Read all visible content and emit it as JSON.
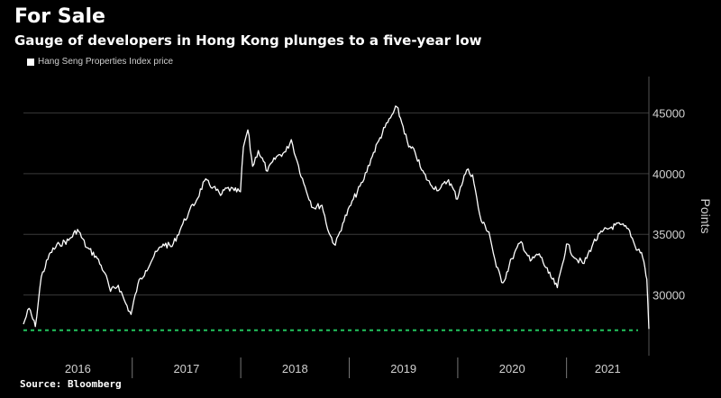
{
  "header": {
    "title": "For Sale",
    "subtitle": "Gauge of developers in Hong Kong plunges to a five-year low"
  },
  "footer": {
    "source": "Source: Bloomberg"
  },
  "colors": {
    "background": "#000000",
    "line": "#ffffff",
    "grid": "#3a3a3a",
    "reference": "#22c55e"
  },
  "chart_data": {
    "type": "line",
    "title": "For Sale",
    "subtitle": "Gauge of developers in Hong Kong plunges to a five-year low",
    "ylabel": "Points",
    "xlabel": "",
    "ylim": [
      25000,
      48000
    ],
    "yticks": [
      30000,
      35000,
      40000,
      45000
    ],
    "ytick_labels": [
      "30000",
      "35000",
      "40000",
      "45000"
    ],
    "xtick_labels": [
      "2016",
      "2017",
      "2018",
      "2019",
      "2020",
      "2021"
    ],
    "xlim": [
      "2016-01-01",
      "2021-10-05"
    ],
    "grid": true,
    "legend_position": "top-left",
    "reference_line": {
      "y": 27100,
      "style": "dashed",
      "color": "#22c55e"
    },
    "series": [
      {
        "name": "Hang Seng Properties Index price",
        "x": [
          "2016-01-01",
          "2016-01-20",
          "2016-02-10",
          "2016-03-01",
          "2016-04-01",
          "2016-05-01",
          "2016-06-01",
          "2016-07-01",
          "2016-08-01",
          "2016-09-01",
          "2016-10-01",
          "2016-10-20",
          "2016-11-15",
          "2016-12-10",
          "2016-12-28",
          "2017-01-20",
          "2017-02-15",
          "2017-03-15",
          "2017-04-15",
          "2017-05-15",
          "2017-06-15",
          "2017-07-10",
          "2017-08-05",
          "2017-09-01",
          "2017-10-01",
          "2017-10-25",
          "2017-11-15",
          "2017-12-10",
          "2017-12-31",
          "2018-01-10",
          "2018-01-25",
          "2018-02-10",
          "2018-03-01",
          "2018-04-01",
          "2018-05-01",
          "2018-06-01",
          "2018-06-20",
          "2018-07-10",
          "2018-08-01",
          "2018-09-01",
          "2018-10-01",
          "2018-10-25",
          "2018-11-15",
          "2018-12-10",
          "2019-01-15",
          "2019-02-15",
          "2019-03-15",
          "2019-04-10",
          "2019-05-01",
          "2019-05-20",
          "2019-06-10",
          "2019-07-01",
          "2019-07-20",
          "2019-08-10",
          "2019-09-01",
          "2019-10-01",
          "2019-11-01",
          "2019-12-01",
          "2019-12-31",
          "2020-01-10",
          "2020-01-31",
          "2020-02-20",
          "2020-03-10",
          "2020-03-20",
          "2020-04-15",
          "2020-05-10",
          "2020-06-01",
          "2020-07-01",
          "2020-08-01",
          "2020-09-01",
          "2020-10-01",
          "2020-11-01",
          "2020-12-01",
          "2021-01-01",
          "2021-02-01",
          "2021-03-01",
          "2021-04-01",
          "2021-05-01",
          "2021-06-01",
          "2021-07-01",
          "2021-08-01",
          "2021-08-20",
          "2021-09-10",
          "2021-09-22",
          "2021-09-28",
          "2021-10-05"
        ],
        "values": [
          27600,
          28900,
          27400,
          31500,
          33500,
          34200,
          34500,
          35400,
          33900,
          33200,
          31800,
          30300,
          30800,
          29300,
          28400,
          30900,
          32000,
          33200,
          34200,
          34000,
          35600,
          36800,
          37800,
          39400,
          38900,
          38200,
          38800,
          38600,
          38500,
          42200,
          43600,
          40600,
          41900,
          40200,
          41400,
          41800,
          42800,
          41000,
          39200,
          37200,
          37400,
          35100,
          34100,
          35900,
          37900,
          39300,
          41200,
          42700,
          43800,
          44600,
          45500,
          43900,
          42200,
          41800,
          40300,
          39100,
          38700,
          39500,
          37900,
          38900,
          40300,
          39900,
          37200,
          36100,
          35200,
          32300,
          31000,
          33000,
          34400,
          32800,
          33400,
          31800,
          30600,
          34200,
          33000,
          32600,
          34300,
          35200,
          35600,
          35800,
          35300,
          34000,
          33500,
          32200,
          31300,
          27200
        ]
      }
    ]
  }
}
